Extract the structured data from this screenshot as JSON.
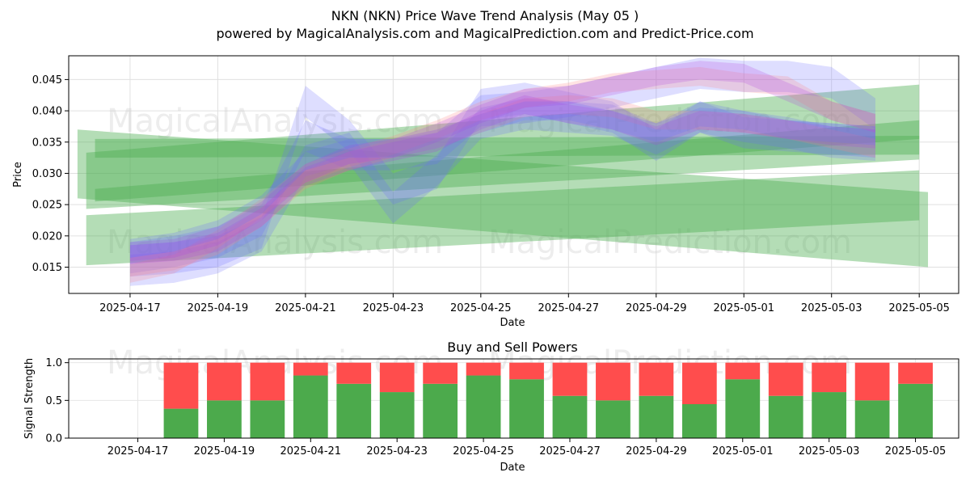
{
  "header": {
    "title": "NKN (NKN) Price Wave Trend Analysis (May 05 )",
    "subtitle": "powered by MagicalAnalysis.com and MagicalPrediction.com and Predict-Price.com"
  },
  "watermarks": [
    "MagicalAnalysis.com",
    "MagicalPrediction.com"
  ],
  "chart_data": [
    {
      "type": "area",
      "title": "NKN (NKN) Price Wave Trend Analysis (May 05 )",
      "xlabel": "Date",
      "ylabel": "Price",
      "xlim": [
        "2025-04-15.6",
        "2025-05-06.0"
      ],
      "ylim": [
        0.0108,
        0.0488
      ],
      "x_ticks": [
        "2025-04-17",
        "2025-04-19",
        "2025-04-21",
        "2025-04-23",
        "2025-04-25",
        "2025-04-27",
        "2025-04-29",
        "2025-05-01",
        "2025-05-03",
        "2025-05-05"
      ],
      "y_ticks": [
        "0.015",
        "0.020",
        "0.025",
        "0.030",
        "0.035",
        "0.040",
        "0.045"
      ],
      "grid": true,
      "colors": {
        "green": "#4caf50",
        "blue": "#6b6bff",
        "red": "#ff8080",
        "purple": "#b040e0"
      },
      "bands": [
        {
          "name": "green-wave-1",
          "color": "green",
          "x": [
            -0.2,
            19.2
          ],
          "center": [
            0.0315,
            0.021
          ],
          "width": [
            0.011,
            0.012
          ]
        },
        {
          "name": "green-wave-2",
          "color": "green",
          "x": [
            0.0,
            19.0
          ],
          "center": [
            0.0288,
            0.0382
          ],
          "width": [
            0.009,
            0.012
          ]
        },
        {
          "name": "green-wave-3",
          "color": "green",
          "x": [
            0.0,
            19.0
          ],
          "center": [
            0.0193,
            0.0265
          ],
          "width": [
            0.008,
            0.008
          ]
        },
        {
          "name": "green-wave-4",
          "color": "green",
          "x": [
            0.2,
            19.0
          ],
          "center": [
            0.034,
            0.0345
          ],
          "width": [
            0.003,
            0.003
          ]
        },
        {
          "name": "green-wave-5",
          "color": "green",
          "x": [
            0.2,
            19.0
          ],
          "center": [
            0.0265,
            0.037
          ],
          "width": [
            0.002,
            0.003
          ]
        }
      ],
      "series": [
        {
          "name": "blue-1",
          "color": "blue",
          "x": [
            1,
            2,
            3,
            4,
            5,
            6,
            7,
            8,
            9,
            10,
            11,
            12,
            13,
            14,
            15,
            16,
            17,
            18
          ],
          "values": [
            0.016,
            0.0165,
            0.0175,
            0.0205,
            0.0415,
            0.036,
            0.0275,
            0.03,
            0.041,
            0.042,
            0.0405,
            0.039,
            0.0345,
            0.039,
            0.0365,
            0.036,
            0.0355,
            0.035
          ],
          "width": 0.005
        },
        {
          "name": "blue-2",
          "color": "blue",
          "x": [
            1,
            2,
            3,
            4,
            5,
            6,
            7,
            8,
            9,
            10,
            11,
            12,
            13,
            14,
            15,
            16,
            17,
            18
          ],
          "values": [
            0.0145,
            0.015,
            0.0165,
            0.02,
            0.032,
            0.034,
            0.0245,
            0.0305,
            0.038,
            0.0395,
            0.039,
            0.0385,
            0.0355,
            0.039,
            0.0375,
            0.0365,
            0.035,
            0.0345
          ],
          "width": 0.005
        },
        {
          "name": "blue-3",
          "color": "blue",
          "x": [
            1,
            2,
            3,
            4,
            5,
            6,
            7,
            8,
            9,
            10,
            11,
            12,
            13,
            14,
            15,
            16,
            17,
            18
          ],
          "values": [
            0.0165,
            0.0175,
            0.019,
            0.0225,
            0.036,
            0.033,
            0.033,
            0.034,
            0.04,
            0.0405,
            0.0415,
            0.043,
            0.0445,
            0.046,
            0.0455,
            0.0455,
            0.0445,
            0.0395
          ],
          "width": 0.005
        },
        {
          "name": "red-1",
          "color": "red",
          "x": [
            1,
            2,
            3,
            4,
            5,
            6,
            7,
            8,
            9,
            10,
            11,
            12,
            13,
            14,
            15,
            16,
            17,
            18
          ],
          "values": [
            0.014,
            0.0155,
            0.0195,
            0.0245,
            0.03,
            0.0325,
            0.0345,
            0.037,
            0.04,
            0.042,
            0.043,
            0.0445,
            0.045,
            0.0455,
            0.0445,
            0.044,
            0.04,
            0.038
          ],
          "width": 0.003
        },
        {
          "name": "red-2",
          "color": "red",
          "x": [
            1,
            2,
            3,
            4,
            5,
            6,
            7,
            8,
            9,
            10,
            11,
            12,
            13,
            14,
            15,
            16,
            17,
            18
          ],
          "values": [
            0.015,
            0.016,
            0.0185,
            0.023,
            0.029,
            0.032,
            0.034,
            0.0355,
            0.038,
            0.0405,
            0.041,
            0.0405,
            0.0385,
            0.0385,
            0.038,
            0.037,
            0.0355,
            0.034
          ],
          "width": 0.003
        },
        {
          "name": "purple-1",
          "color": "purple",
          "x": [
            1,
            2,
            3,
            4,
            5,
            6,
            7,
            8,
            9,
            10,
            11,
            12,
            13,
            14,
            15,
            16,
            17,
            18
          ],
          "values": [
            0.0175,
            0.018,
            0.02,
            0.024,
            0.03,
            0.033,
            0.034,
            0.0365,
            0.0395,
            0.042,
            0.0425,
            0.044,
            0.0455,
            0.0465,
            0.046,
            0.043,
            0.04,
            0.038
          ],
          "width": 0.003
        },
        {
          "name": "purple-2",
          "color": "purple",
          "x": [
            1,
            2,
            3,
            4,
            5,
            6,
            7,
            8,
            9,
            10,
            11,
            12,
            13,
            14,
            15,
            16,
            17,
            18
          ],
          "values": [
            0.017,
            0.0175,
            0.019,
            0.023,
            0.0295,
            0.032,
            0.0335,
            0.035,
            0.0385,
            0.041,
            0.0395,
            0.0385,
            0.036,
            0.0385,
            0.038,
            0.037,
            0.036,
            0.0355
          ],
          "width": 0.003
        },
        {
          "name": "slate-1",
          "color": "blue",
          "x": [
            1,
            2,
            3,
            4,
            5,
            6,
            7,
            8,
            9,
            10,
            11,
            12,
            13,
            14,
            15,
            16,
            17,
            18
          ],
          "values": [
            0.018,
            0.019,
            0.021,
            0.025,
            0.032,
            0.034,
            0.034,
            0.0355,
            0.038,
            0.04,
            0.04,
            0.0385,
            0.0365,
            0.039,
            0.0385,
            0.037,
            0.0365,
            0.036
          ],
          "width": 0.003
        }
      ]
    },
    {
      "type": "bar",
      "title": "Buy and Sell Powers",
      "xlabel": "Date",
      "ylabel": "Signal Strength",
      "ylim": [
        0.0,
        1.05
      ],
      "y_ticks": [
        "0.0",
        "0.5",
        "1.0"
      ],
      "x_ticks": [
        "2025-04-17",
        "2025-04-19",
        "2025-04-21",
        "2025-04-23",
        "2025-04-25",
        "2025-04-27",
        "2025-04-29",
        "2025-05-01",
        "2025-05-03",
        "2025-05-05"
      ],
      "categories": [
        "2025-04-18",
        "2025-04-19",
        "2025-04-20",
        "2025-04-21",
        "2025-04-22",
        "2025-04-23",
        "2025-04-24",
        "2025-04-25",
        "2025-04-26",
        "2025-04-27",
        "2025-04-28",
        "2025-04-29",
        "2025-04-30",
        "2025-05-01",
        "2025-05-02",
        "2025-05-03",
        "2025-05-04",
        "2025-05-05"
      ],
      "series": [
        {
          "name": "Buy",
          "color": "#4caa4c",
          "values": [
            0.39,
            0.5,
            0.5,
            0.83,
            0.72,
            0.61,
            0.72,
            0.83,
            0.78,
            0.56,
            0.5,
            0.56,
            0.45,
            0.78,
            0.56,
            0.61,
            0.5,
            0.72
          ]
        },
        {
          "name": "Sell",
          "color": "#ff4d4d",
          "values": [
            0.61,
            0.5,
            0.5,
            0.17,
            0.28,
            0.39,
            0.28,
            0.17,
            0.22,
            0.44,
            0.5,
            0.44,
            0.55,
            0.22,
            0.44,
            0.39,
            0.5,
            0.28
          ]
        }
      ]
    }
  ]
}
